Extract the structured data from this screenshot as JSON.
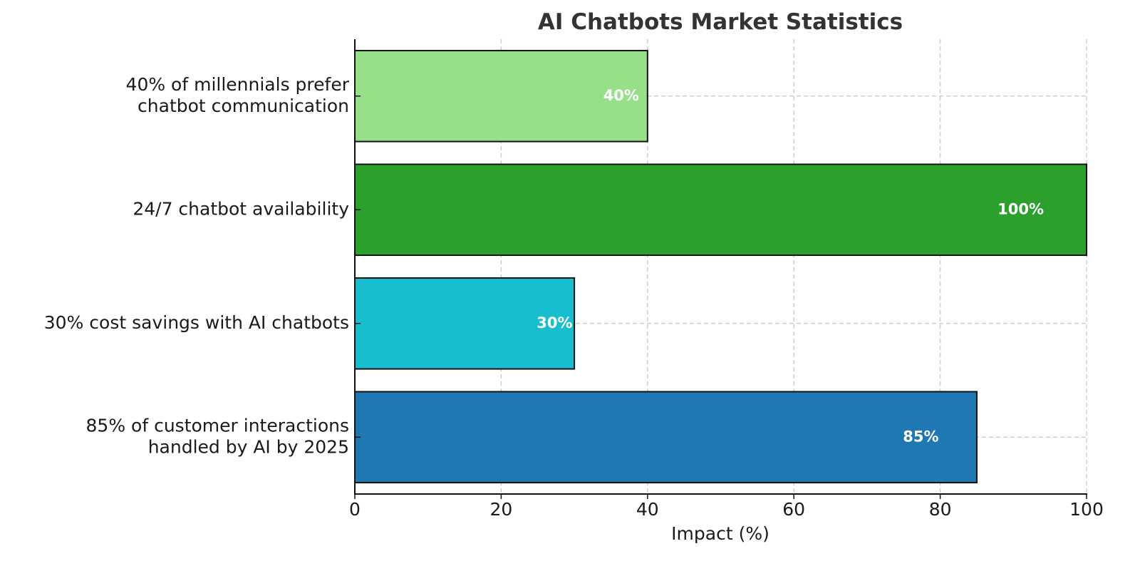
{
  "chart_data": {
    "type": "bar",
    "orientation": "horizontal",
    "title": "AI Chatbots Market Statistics",
    "xlabel": "Impact (%)",
    "ylabel": "",
    "xlim": [
      0,
      100
    ],
    "xticks": [
      0,
      20,
      40,
      60,
      80,
      100
    ],
    "grid": true,
    "categories": [
      "85% of customer interactions\nhandled by AI by 2025",
      "30% cost savings with AI chatbots",
      "24/7 chatbot availability",
      "40% of millennials prefer\nchatbot communication"
    ],
    "values": [
      85,
      30,
      100,
      40
    ],
    "value_labels": [
      "85%",
      "30%",
      "100%",
      "40%"
    ],
    "colors": [
      "#1f77b4",
      "#17becf",
      "#2ca02c",
      "#98df8a"
    ]
  }
}
